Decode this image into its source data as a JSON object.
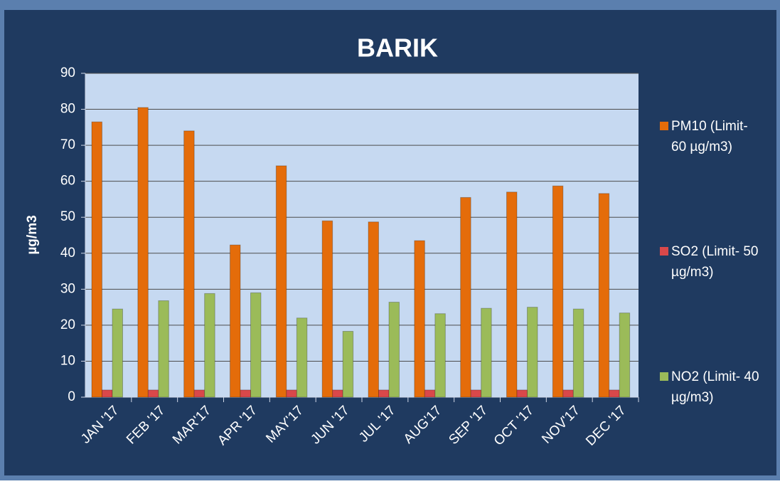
{
  "chart_data": {
    "type": "bar",
    "title": "BARIK",
    "y_label": "µg/m3",
    "categories": [
      "JAN '17",
      "FEB '17",
      "MAR'17",
      "APR '17",
      "MAY'17",
      "JUN '17",
      "JUL '17",
      "AUG'17",
      "SEP '17",
      "OCT '17",
      "NOV'17",
      "DEC '17"
    ],
    "series": [
      {
        "name": "PM10 (Limit- 60 µg/m3)",
        "color": "#e46c0a",
        "values": [
          76.5,
          80.5,
          74,
          42.3,
          64.3,
          49,
          48.7,
          43.5,
          55.5,
          57,
          58.7,
          56.6
        ]
      },
      {
        "name": "SO2 (Limit- 50 µg/m3)",
        "color": "#d9484a",
        "values": [
          2,
          2,
          2,
          2,
          2,
          2,
          2,
          2,
          2,
          2,
          2,
          2
        ]
      },
      {
        "name": "NO2 (Limit- 40 µg/m3)",
        "color": "#9bbb59",
        "values": [
          24.5,
          26.8,
          28.8,
          29,
          22,
          18.3,
          26.4,
          23.2,
          24.7,
          25,
          24.5,
          23.4
        ]
      }
    ],
    "ylim": [
      0,
      90
    ],
    "yticks": [
      0,
      10,
      20,
      30,
      40,
      50,
      60,
      70,
      80,
      90
    ],
    "grid": true,
    "legend": "right"
  }
}
